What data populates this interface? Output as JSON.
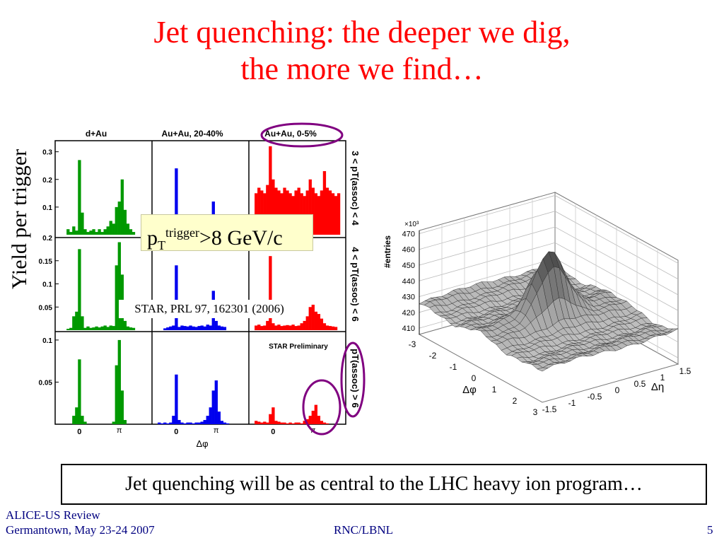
{
  "slide": {
    "title_line1": "Jet quenching: the deeper we dig,",
    "title_line2": "the more we find…",
    "ylabel": "Yield per trigger",
    "trigger_label": {
      "p": "p",
      "sub": "T",
      "sup": "trigger",
      "rest": ">8 GeV/c"
    },
    "reference": "STAR, PRL 97, 162301 (2006)",
    "statement": "Jet quenching will be as central to the LHC heavy ion program…",
    "footer": {
      "left_line1": "ALICE-US Review",
      "left_line2": "Germantown, May 23-24 2007",
      "center": "RNC/LBNL",
      "page": "5"
    }
  },
  "chart_data": [
    {
      "type": "bar",
      "title": "Azimuthal correlation histograms",
      "columns": [
        "d+Au",
        "Au+Au, 20-40%",
        "Au+Au, 0-5%"
      ],
      "rows": [
        "3 < pT(assoc) < 4",
        "4 < pT(assoc) < 6",
        "pT(assoc) > 6"
      ],
      "xlabel": "Δφ",
      "x_ticks": [
        "0",
        "π"
      ],
      "row_y_ticks": [
        [
          "0.1",
          "0.2",
          "0.3"
        ],
        [
          "0.05",
          "0.1",
          "0.15",
          "0.2"
        ],
        [
          "0.05",
          "0.1"
        ]
      ],
      "row_ylim": [
        [
          0,
          0.34
        ],
        [
          0,
          0.2
        ],
        [
          0,
          0.11
        ]
      ],
      "annotation": "STAR Preliminary",
      "colors": {
        "d+Au": "#009900",
        "Au+Au, 20-40%": "#0000ee",
        "Au+Au, 0-5%": "#ff0000"
      },
      "highlight_color": "#800080",
      "bin_count": 30,
      "panels": [
        {
          "row": 0,
          "col": 0,
          "values": [
            0,
            0,
            0.02,
            0.01,
            0.03,
            0.015,
            0.27,
            0.08,
            0.02,
            0.01,
            0.015,
            0.02,
            0.01,
            0.02,
            0.01,
            0.02,
            0.03,
            0.05,
            0.04,
            0.1,
            0.12,
            0.2,
            0.09,
            0.04,
            0.02,
            0.01,
            0,
            0,
            0,
            0
          ]
        },
        {
          "row": 0,
          "col": 1,
          "values": [
            0,
            0,
            0.01,
            0,
            0.02,
            0.02,
            0.24,
            0.03,
            0.02,
            0.01,
            0.01,
            0.01,
            0.02,
            0.01,
            0.02,
            0.01,
            0.01,
            0.03,
            0.05,
            0.12,
            0.03,
            0.01,
            0.02,
            0.01,
            0.01,
            0,
            0,
            0,
            0,
            0
          ]
        },
        {
          "row": 0,
          "col": 2,
          "values": [
            0.15,
            0.17,
            0.16,
            0.15,
            0.18,
            0.32,
            0.2,
            0.17,
            0.16,
            0.15,
            0.17,
            0.16,
            0.15,
            0.14,
            0.16,
            0.17,
            0.15,
            0.14,
            0.16,
            0.2,
            0.17,
            0.15,
            0.14,
            0.16,
            0.23,
            0.17,
            0.16,
            0.15,
            0.14,
            0.15
          ]
        },
        {
          "row": 1,
          "col": 0,
          "values": [
            0,
            0,
            0.003,
            0.005,
            0.03,
            0.04,
            0.175,
            0.03,
            0.005,
            0.008,
            0.005,
            0.006,
            0.008,
            0.006,
            0.008,
            0.01,
            0.007,
            0.01,
            0.009,
            0.14,
            0.19,
            0.12,
            0.02,
            0.008,
            0.006,
            0.005,
            0,
            0,
            0,
            0
          ]
        },
        {
          "row": 1,
          "col": 1,
          "values": [
            0,
            0,
            0.004,
            0.006,
            0.008,
            0.01,
            0.14,
            0.007,
            0.01,
            0.009,
            0.008,
            0.01,
            0.008,
            0.007,
            0.009,
            0.01,
            0.008,
            0.012,
            0.01,
            0.085,
            0.02,
            0.01,
            0.008,
            0.007,
            0,
            0,
            0,
            0,
            0,
            0
          ]
        },
        {
          "row": 1,
          "col": 2,
          "values": [
            0.01,
            0.012,
            0.009,
            0.01,
            0.02,
            0.16,
            0.015,
            0.01,
            0.012,
            0.009,
            0.01,
            0.011,
            0.01,
            0.012,
            0.009,
            0.01,
            0.015,
            0.02,
            0.03,
            0.05,
            0.055,
            0.04,
            0.035,
            0.025,
            0.015,
            0.01,
            0.009,
            0.008,
            0.007,
            0
          ]
        },
        {
          "row": 2,
          "col": 0,
          "values": [
            0,
            0,
            0,
            0,
            0.01,
            0.02,
            0.077,
            0.01,
            0.003,
            0,
            0,
            0,
            0,
            0,
            0,
            0,
            0,
            0,
            0.003,
            0.07,
            0.1,
            0.04,
            0.005,
            0,
            0,
            0,
            0,
            0,
            0,
            0
          ]
        },
        {
          "row": 2,
          "col": 1,
          "values": [
            0.002,
            0.001,
            0.002,
            0.001,
            0.002,
            0.01,
            0.059,
            0.005,
            0.002,
            0.001,
            0.002,
            0.002,
            0.001,
            0.002,
            0.002,
            0.003,
            0.005,
            0.01,
            0.02,
            0.04,
            0.052,
            0.015,
            0.004,
            0.002,
            0.001,
            0,
            0,
            0,
            0,
            0
          ]
        },
        {
          "row": 2,
          "col": 2,
          "values": [
            0.004,
            0.003,
            0.002,
            0.003,
            0.002,
            0.012,
            0.02,
            0.004,
            0.003,
            0.002,
            0.002,
            0.001,
            0.002,
            0.001,
            0.002,
            0.002,
            0.001,
            0.004,
            0.006,
            0.01,
            0.016,
            0.023,
            0.01,
            0.004,
            0.002,
            0.001,
            0,
            0,
            0,
            0
          ]
        }
      ]
    },
    {
      "type": "surface",
      "zlabel": "#entries",
      "z_multiplier": "×10³",
      "z_ticks": [
        "410",
        "420",
        "430",
        "440",
        "450",
        "460",
        "470"
      ],
      "zlim": [
        406,
        472
      ],
      "xlabel": "Δφ",
      "x_ticks": [
        "-3",
        "-2",
        "-1",
        "0",
        "1",
        "2",
        "3"
      ],
      "ylabel": "Δη",
      "y_ticks": [
        "-1.5",
        "-1",
        "-0.5",
        "0",
        "0.5",
        "1",
        "1.5"
      ],
      "baseline": 422,
      "peak": {
        "dphi": 0,
        "deta": 0,
        "z": 468
      },
      "ridge_height": 9,
      "surface_color": "#c8c8c8"
    }
  ]
}
